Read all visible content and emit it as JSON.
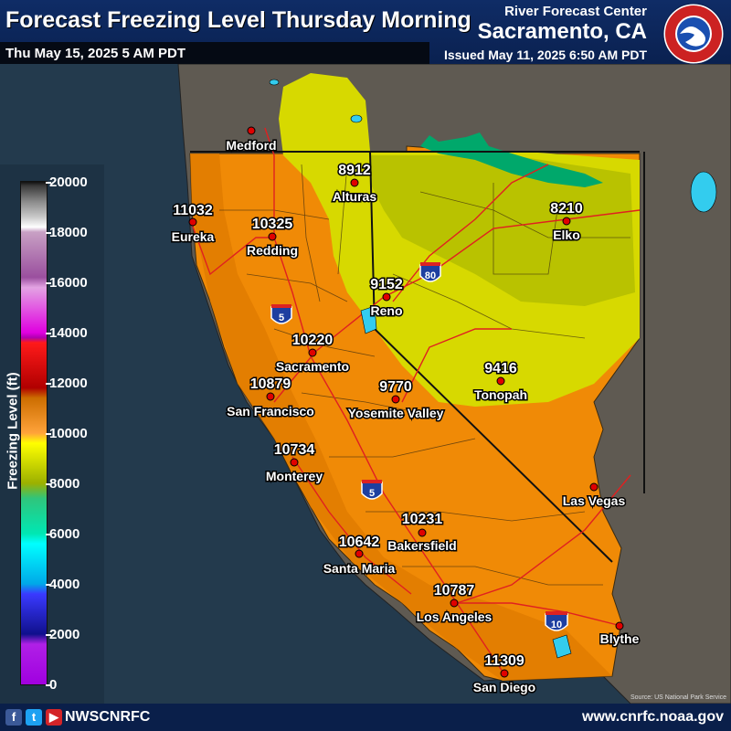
{
  "header": {
    "title": "Forecast Freezing Level Thursday Morning",
    "valid_time": "Thu May 15, 2025 5 AM PDT",
    "organization": "River Forecast Center",
    "office": "Sacramento, CA",
    "issued": "Issued May 11, 2025 6:50 AM PDT",
    "logo_text": "NATIONAL WEATHER SERVICE"
  },
  "legend": {
    "title": "Freezing Level (ft)",
    "ticks": [
      "20000",
      "18000",
      "16000",
      "14000",
      "12000",
      "10000",
      "8000",
      "6000",
      "4000",
      "2000",
      "0"
    ]
  },
  "map": {
    "colors": {
      "ocean": "#233a4d",
      "land_outside": "#5f5a52",
      "orange_zone": "#f08a06",
      "dark_orange_zone": "#e07a00",
      "yellow_zone": "#d7d900",
      "olive_zone": "#b9c200",
      "green_zone": "#00a86b",
      "highway": "#e02020",
      "city_dot": "#e00000"
    },
    "locations": [
      {
        "name": "Medford",
        "value": ""
      },
      {
        "name": "Alturas",
        "value": "8912"
      },
      {
        "name": "Eureka",
        "value": "11032"
      },
      {
        "name": "Redding",
        "value": "10325"
      },
      {
        "name": "Elko",
        "value": "8210"
      },
      {
        "name": "Reno",
        "value": "9152"
      },
      {
        "name": "Sacramento",
        "value": "10220"
      },
      {
        "name": "San Francisco",
        "value": "10879"
      },
      {
        "name": "Yosemite Valley",
        "value": "9770"
      },
      {
        "name": "Tonopah",
        "value": "9416"
      },
      {
        "name": "Monterey",
        "value": "10734"
      },
      {
        "name": "Las Vegas",
        "value": ""
      },
      {
        "name": "Bakersfield",
        "value": "10231"
      },
      {
        "name": "Santa Maria",
        "value": "10642"
      },
      {
        "name": "Los Angeles",
        "value": "10787"
      },
      {
        "name": "Blythe",
        "value": ""
      },
      {
        "name": "San Diego",
        "value": "11309"
      }
    ],
    "shields": [
      "80",
      "5",
      "5",
      "10"
    ],
    "source": "Source: US National Park Service"
  },
  "footer": {
    "handle": "NWSCNRFC",
    "website": "www.cnrfc.noaa.gov"
  }
}
